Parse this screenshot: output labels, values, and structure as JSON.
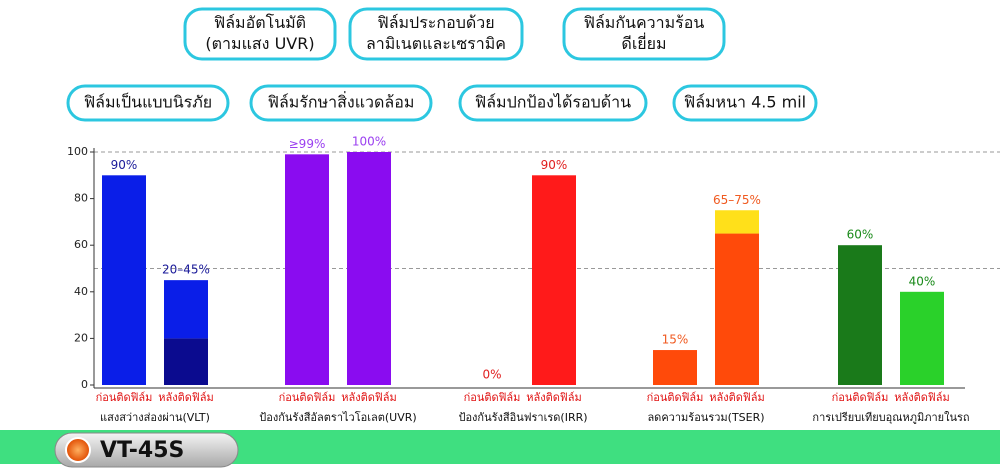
{
  "features": [
    [
      "ฟิล์มอัตโนมัติ",
      "(ตามแสง UVR)"
    ],
    [
      "ฟิล์มประกอบด้วย",
      "ลามิเนตและเซรามิค"
    ],
    [
      "ฟิล์มกันความร้อน",
      "ดีเยี่ยม"
    ],
    [
      "ฟิล์มเป็นแบบนิรภัย"
    ],
    [
      "ฟิล์มรักษาสิ่งแวดล้อม"
    ],
    [
      "ฟิล์มปกป้องได้รอบด้าน"
    ],
    [
      "ฟิล์มหนา 4.5 mil"
    ]
  ],
  "model": "VT-45S",
  "chart_data": {
    "type": "bar",
    "ylim": [
      0,
      100
    ],
    "yticks": [
      0,
      20,
      40,
      60,
      80,
      100
    ],
    "ref_lines": [
      50,
      100
    ],
    "groups": [
      {
        "label": "แสงสว่างส่องผ่าน(VLT)",
        "bar_labels": [
          "ก่อนติดฟิล์ม",
          "หลังติดฟิล์ม"
        ],
        "values": [
          90,
          45
        ],
        "low": [
          null,
          20
        ],
        "value_labels": [
          "90%",
          "20–45%"
        ],
        "colors": [
          "#0a1ee8",
          "#0a1ee8"
        ],
        "low_colors": [
          null,
          "#0b0b8f"
        ],
        "label_color": "#1a1a9a"
      },
      {
        "label": "ป้องกันรังสีอัลตราไวโอเลต(UVR)",
        "bar_labels": [
          "ก่อนติดฟิล์ม",
          "หลังติดฟิล์ม"
        ],
        "values": [
          99,
          100
        ],
        "low": [
          null,
          null
        ],
        "value_labels": [
          "≥99%",
          "100%"
        ],
        "colors": [
          "#8a0cf0",
          "#8a0cf0"
        ],
        "low_colors": [
          null,
          null
        ],
        "label_color": "#9b40f0"
      },
      {
        "label": "ป้องกันรังสีอินฟราเรด(IRR)",
        "bar_labels": [
          "ก่อนติดฟิล์ม",
          "หลังติดฟิล์ม"
        ],
        "values": [
          0,
          90
        ],
        "low": [
          null,
          null
        ],
        "value_labels": [
          "0%",
          "90%"
        ],
        "colors": [
          "#ff1a1a",
          "#ff1a1a"
        ],
        "low_colors": [
          null,
          null
        ],
        "label_color": "#e02020"
      },
      {
        "label": "ลดความร้อนรวม(TSER)",
        "bar_labels": [
          "ก่อนติดฟิล์ม",
          "หลังติดฟิล์ม"
        ],
        "values": [
          15,
          75
        ],
        "low": [
          null,
          65
        ],
        "value_labels": [
          "15%",
          "65–75%"
        ],
        "colors": [
          "#ff4a0a",
          "#ffe01a"
        ],
        "low_colors": [
          null,
          "#ff4a0a"
        ],
        "label_color": "#f05a20"
      },
      {
        "label": "การเปรียบเทียบอุณหภูมิภายในรถ",
        "bar_labels": [
          "ก่อนติดฟิล์ม",
          "หลังติดฟิล์ม"
        ],
        "values": [
          60,
          40
        ],
        "low": [
          null,
          null
        ],
        "value_labels": [
          "60%",
          "40%"
        ],
        "colors": [
          "#1a7a1a",
          "#2ad12a"
        ],
        "low_colors": [
          null,
          null
        ],
        "label_color": "#1a8a1a"
      }
    ]
  }
}
